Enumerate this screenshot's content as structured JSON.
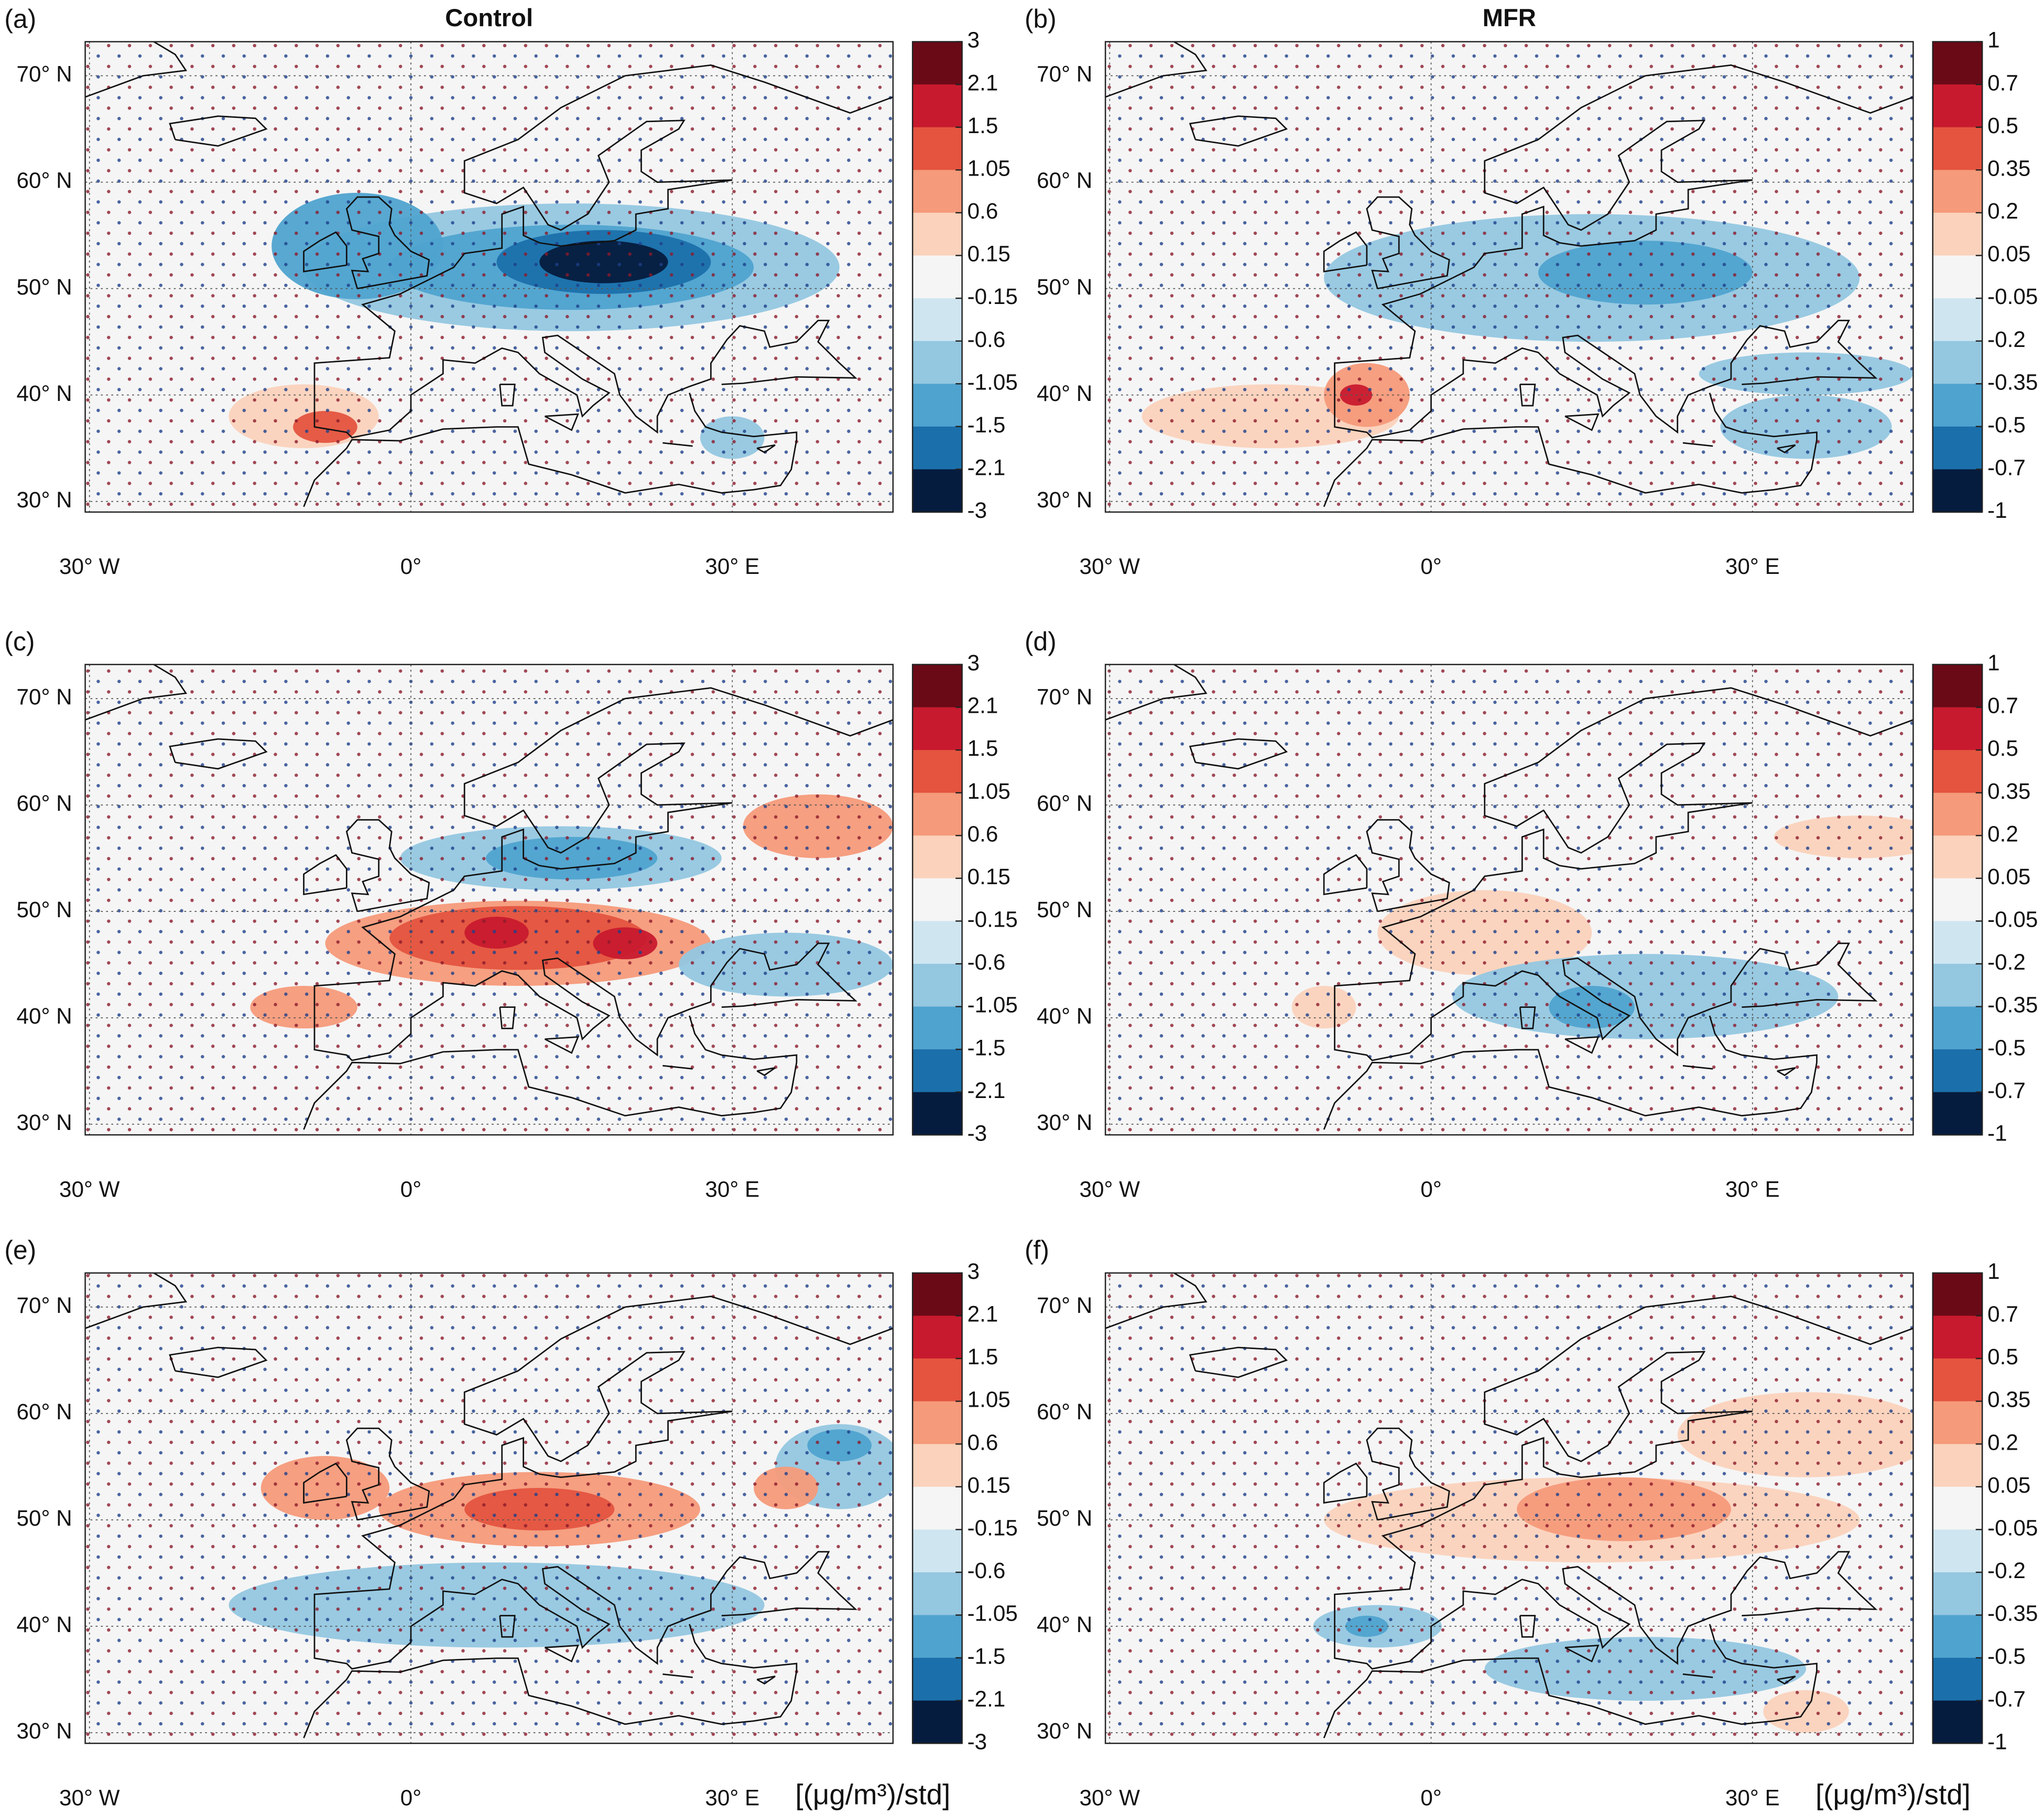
{
  "map": {
    "xlim": [
      -30.4,
      45
    ],
    "ylim": [
      29,
      73.2
    ]
  },
  "colorbar_colors": [
    "#6b0a17",
    "#c81a2e",
    "#e4543f",
    "#f59a7a",
    "#fbd2bc",
    "#f5f5f5",
    "#cfe6f1",
    "#94c7e0",
    "#4fa3cf",
    "#1b70ab",
    "#061c3e"
  ],
  "panels": [
    {
      "label": "(a)",
      "title": "Control",
      "lat_ticks": [
        {
          "value": 30,
          "label": "30° N"
        },
        {
          "value": 40,
          "label": "40° N"
        },
        {
          "value": 50,
          "label": "50° N"
        },
        {
          "value": 60,
          "label": "60° N"
        },
        {
          "value": 70,
          "label": "70° N"
        }
      ],
      "lon_ticks": [
        {
          "value": -30,
          "label": "30° W"
        },
        {
          "value": 0,
          "label": "0°"
        },
        {
          "value": 30,
          "label": "30° E"
        }
      ],
      "colorbar_ticks": [
        3,
        2.1,
        1.5,
        1.05,
        0.6,
        0.15,
        -0.15,
        -0.6,
        -1.05,
        -1.5,
        -2.1,
        -3
      ]
    },
    {
      "label": "(b)",
      "title": "MFR",
      "lat_ticks": [
        {
          "value": 30,
          "label": "30° N"
        },
        {
          "value": 40,
          "label": "40° N"
        },
        {
          "value": 50,
          "label": "50° N"
        },
        {
          "value": 60,
          "label": "60° N"
        },
        {
          "value": 70,
          "label": "70° N"
        }
      ],
      "lon_ticks": [
        {
          "value": -30,
          "label": "30° W"
        },
        {
          "value": 0,
          "label": "0°"
        },
        {
          "value": 30,
          "label": "30° E"
        }
      ],
      "colorbar_ticks": [
        1,
        0.7,
        0.5,
        0.35,
        0.2,
        0.05,
        -0.05,
        -0.2,
        -0.35,
        -0.5,
        -0.7,
        -1
      ]
    },
    {
      "label": "(c)",
      "lat_ticks": [
        {
          "value": 30,
          "label": "30° N"
        },
        {
          "value": 40,
          "label": "40° N"
        },
        {
          "value": 50,
          "label": "50° N"
        },
        {
          "value": 60,
          "label": "60° N"
        },
        {
          "value": 70,
          "label": "70° N"
        }
      ],
      "lon_ticks": [
        {
          "value": -30,
          "label": "30° W"
        },
        {
          "value": 0,
          "label": "0°"
        },
        {
          "value": 30,
          "label": "30° E"
        }
      ],
      "colorbar_ticks": [
        3,
        2.1,
        1.5,
        1.05,
        0.6,
        0.15,
        -0.15,
        -0.6,
        -1.05,
        -1.5,
        -2.1,
        -3
      ]
    },
    {
      "label": "(d)",
      "lat_ticks": [
        {
          "value": 30,
          "label": "30° N"
        },
        {
          "value": 40,
          "label": "40° N"
        },
        {
          "value": 50,
          "label": "50° N"
        },
        {
          "value": 60,
          "label": "60° N"
        },
        {
          "value": 70,
          "label": "70° N"
        }
      ],
      "lon_ticks": [
        {
          "value": -30,
          "label": "30° W"
        },
        {
          "value": 0,
          "label": "0°"
        },
        {
          "value": 30,
          "label": "30° E"
        }
      ],
      "colorbar_ticks": [
        1,
        0.7,
        0.5,
        0.35,
        0.2,
        0.05,
        -0.05,
        -0.2,
        -0.35,
        -0.5,
        -0.7,
        -1
      ]
    },
    {
      "label": "(e)",
      "lat_ticks": [
        {
          "value": 30,
          "label": "30° N"
        },
        {
          "value": 40,
          "label": "40° N"
        },
        {
          "value": 50,
          "label": "50° N"
        },
        {
          "value": 60,
          "label": "60° N"
        },
        {
          "value": 70,
          "label": "70° N"
        }
      ],
      "lon_ticks": [
        {
          "value": -30,
          "label": "30° W"
        },
        {
          "value": 0,
          "label": "0°"
        },
        {
          "value": 30,
          "label": "30° E"
        }
      ],
      "colorbar_ticks": [
        3,
        2.1,
        1.5,
        1.05,
        0.6,
        0.15,
        -0.15,
        -0.6,
        -1.05,
        -1.5,
        -2.1,
        -3
      ],
      "unit": "[(μg/m³)/std]"
    },
    {
      "label": "(f)",
      "lat_ticks": [
        {
          "value": 30,
          "label": "30° N"
        },
        {
          "value": 40,
          "label": "40° N"
        },
        {
          "value": 50,
          "label": "50° N"
        },
        {
          "value": 60,
          "label": "60° N"
        },
        {
          "value": 70,
          "label": "70° N"
        }
      ],
      "lon_ticks": [
        {
          "value": -30,
          "label": "30° W"
        },
        {
          "value": 0,
          "label": "0°"
        },
        {
          "value": 30,
          "label": "30° E"
        }
      ],
      "colorbar_ticks": [
        1,
        0.7,
        0.5,
        0.35,
        0.2,
        0.05,
        -0.05,
        -0.2,
        -0.35,
        -0.5,
        -0.7,
        -1
      ],
      "unit": "[(μg/m³)/std]"
    }
  ]
}
